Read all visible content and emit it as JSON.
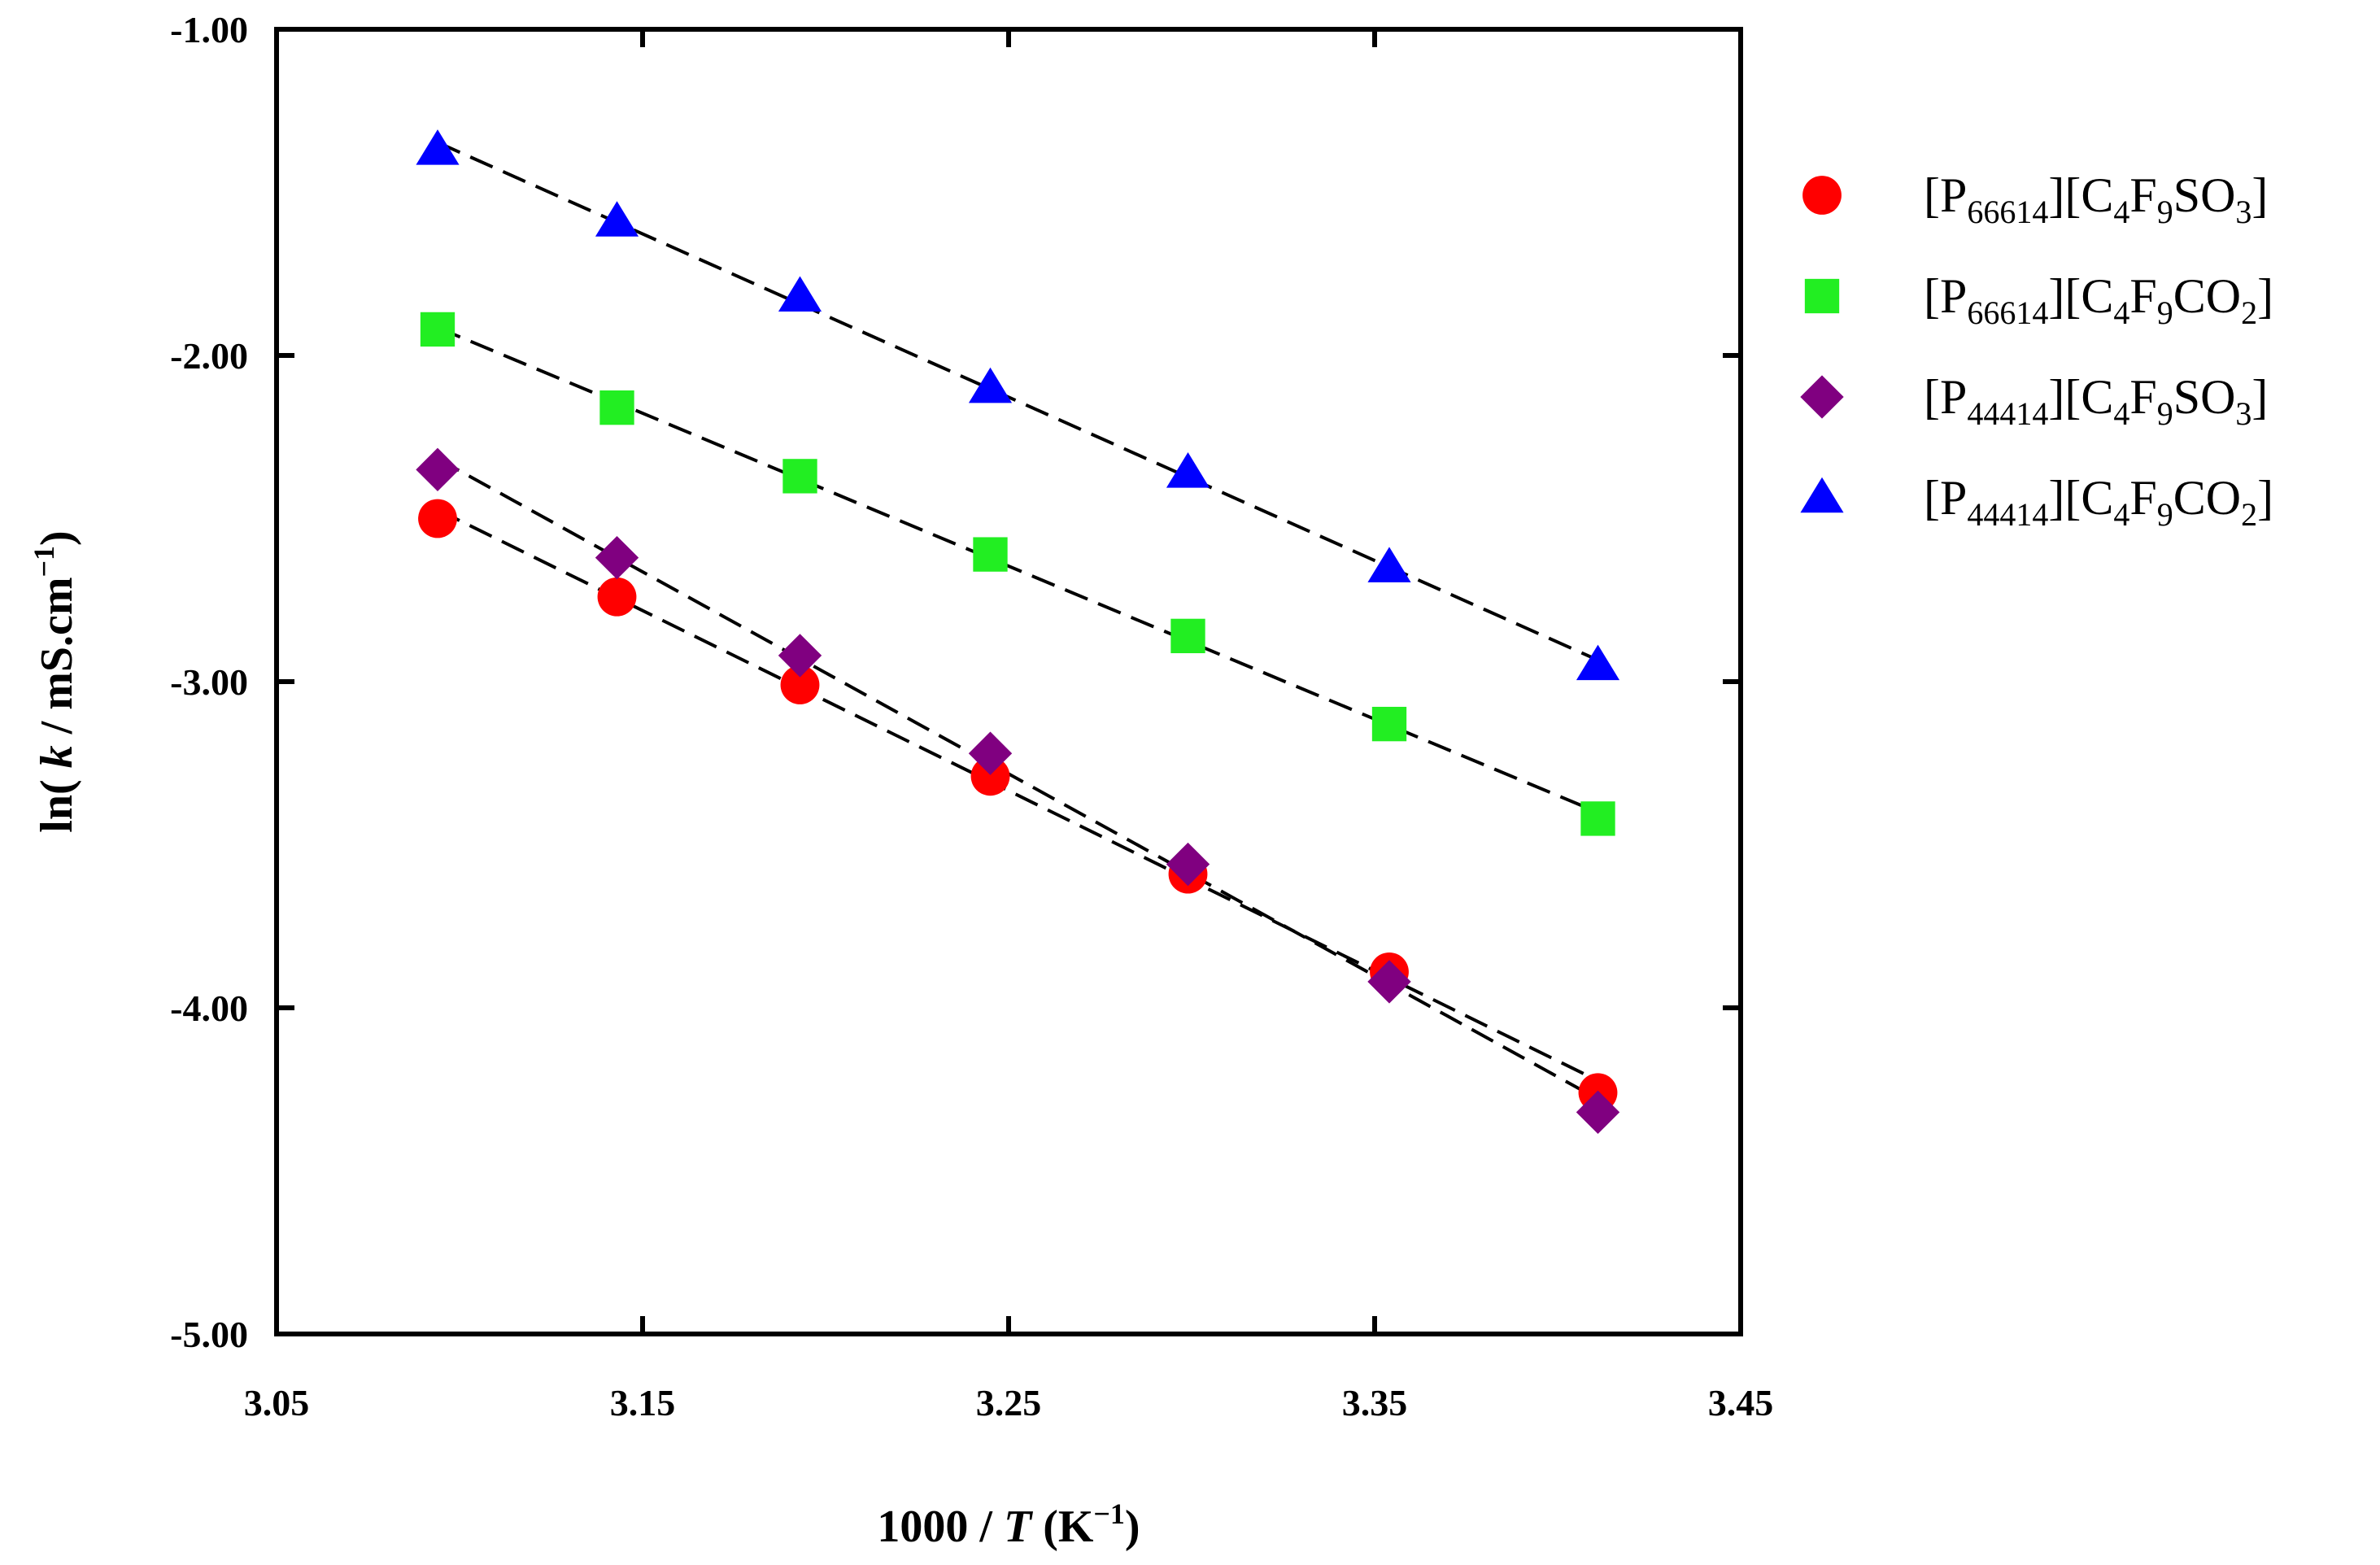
{
  "chart_data": {
    "type": "scatter",
    "title": "",
    "x_axis": {
      "min": 3.05,
      "max": 3.45,
      "ticks": [
        3.05,
        3.15,
        3.25,
        3.35,
        3.45
      ],
      "tick_labels": [
        "3.05",
        "3.15",
        "3.25",
        "3.35",
        "3.45"
      ],
      "label": {
        "main": "1000 / ",
        "var": "T",
        "unit_open": " (K",
        "sup": "−1",
        "unit_close": ")"
      }
    },
    "y_axis": {
      "min": -5.0,
      "max": -1.0,
      "ticks": [
        -5.0,
        -4.0,
        -3.0,
        -2.0,
        -1.0
      ],
      "tick_labels": [
        "-5.00",
        "-4.00",
        "-3.00",
        "-2.00",
        "-1.00"
      ],
      "label": {
        "main": "ln( ",
        "var": "k",
        "unit": " / mS.cm",
        "sup": "−1",
        "close": ")"
      }
    },
    "fit_lines": "dashed linear fit per series",
    "series": [
      {
        "name": "[P66614][C4F9SO3]",
        "parts": [
          [
            "[P",
            ""
          ],
          [
            "66614",
            "sub"
          ],
          [
            "][C",
            ""
          ],
          [
            "4",
            "sub"
          ],
          [
            "F",
            ""
          ],
          [
            "9",
            "sub"
          ],
          [
            "SO",
            ""
          ],
          [
            "3",
            "sub"
          ],
          [
            "]",
            ""
          ]
        ],
        "marker": "circle",
        "color": "#ff0000",
        "x": [
          3.094,
          3.143,
          3.193,
          3.245,
          3.299,
          3.354,
          3.411
        ],
        "y": [
          -2.5,
          -2.74,
          -3.01,
          -3.29,
          -3.59,
          -3.89,
          -4.26
        ]
      },
      {
        "name": "[P66614][C4F9CO2]",
        "parts": [
          [
            "[P",
            ""
          ],
          [
            "66614",
            "sub"
          ],
          [
            "][C",
            ""
          ],
          [
            "4",
            "sub"
          ],
          [
            "F",
            ""
          ],
          [
            "9",
            "sub"
          ],
          [
            "CO",
            ""
          ],
          [
            "2",
            "sub"
          ],
          [
            "]",
            ""
          ]
        ],
        "marker": "square",
        "color": "#22ee22",
        "x": [
          3.094,
          3.143,
          3.193,
          3.245,
          3.299,
          3.354,
          3.411
        ],
        "y": [
          -1.92,
          -2.16,
          -2.37,
          -2.61,
          -2.86,
          -3.13,
          -3.42
        ]
      },
      {
        "name": "[P44414][C4F9SO3]",
        "parts": [
          [
            "[P",
            ""
          ],
          [
            "44414",
            "sub"
          ],
          [
            "][C",
            ""
          ],
          [
            "4",
            "sub"
          ],
          [
            "F",
            ""
          ],
          [
            "9",
            "sub"
          ],
          [
            "SO",
            ""
          ],
          [
            "3",
            "sub"
          ],
          [
            "]",
            ""
          ]
        ],
        "marker": "diamond",
        "color": "#800080",
        "x": [
          3.094,
          3.143,
          3.193,
          3.245,
          3.299,
          3.354,
          3.411
        ],
        "y": [
          -2.35,
          -2.62,
          -2.92,
          -3.22,
          -3.56,
          -3.92,
          -4.32
        ]
      },
      {
        "name": "[P44414][C4F9CO2]",
        "parts": [
          [
            "[P",
            ""
          ],
          [
            "44414",
            "sub"
          ],
          [
            "][C",
            ""
          ],
          [
            "4",
            "sub"
          ],
          [
            "F",
            ""
          ],
          [
            "9",
            "sub"
          ],
          [
            "CO",
            ""
          ],
          [
            "2",
            "sub"
          ],
          [
            "]",
            ""
          ]
        ],
        "marker": "triangle",
        "color": "#0000ff",
        "x": [
          3.094,
          3.143,
          3.193,
          3.245,
          3.299,
          3.354,
          3.411
        ],
        "y": [
          -1.37,
          -1.59,
          -1.82,
          -2.1,
          -2.36,
          -2.65,
          -2.95
        ]
      }
    ],
    "legend_position": "right"
  }
}
